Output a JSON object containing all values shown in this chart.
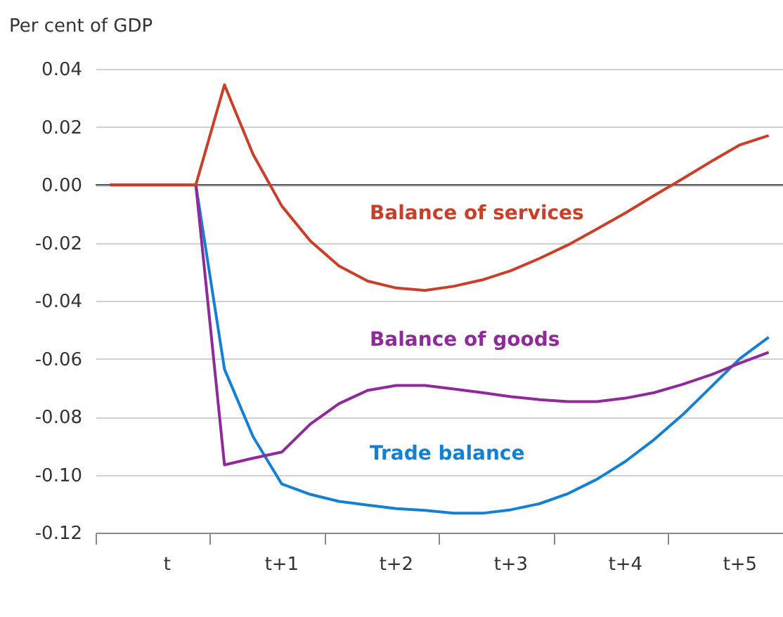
{
  "chart_data": {
    "type": "line",
    "ylabel": "Per cent of GDP",
    "categories": [
      null,
      null,
      "t",
      null,
      null,
      null,
      "t+1",
      null,
      null,
      null,
      "t+2",
      null,
      null,
      null,
      "t+3",
      null,
      null,
      null,
      "t+4",
      null,
      null,
      null,
      "t+5",
      null
    ],
    "series": [
      {
        "name": "Balance of services",
        "color": "#c8402a",
        "values": [
          0,
          0,
          0,
          0,
          0.0345,
          0.0105,
          -0.0073,
          -0.0194,
          -0.028,
          -0.0332,
          -0.0356,
          -0.0364,
          -0.035,
          -0.0328,
          -0.0296,
          -0.0254,
          -0.0207,
          -0.0153,
          -0.0097,
          -0.0037,
          0.0021,
          0.0081,
          0.0138,
          0.017
        ]
      },
      {
        "name": "Balance of goods",
        "color": "#8e2a9a",
        "values": [
          null,
          null,
          null,
          0,
          -0.0966,
          -0.0943,
          -0.0922,
          -0.0825,
          -0.0755,
          -0.0709,
          -0.0692,
          -0.0692,
          -0.0704,
          -0.0717,
          -0.0731,
          -0.0741,
          -0.0748,
          -0.0748,
          -0.0736,
          -0.0717,
          -0.0688,
          -0.0655,
          -0.0615,
          -0.0578
        ]
      },
      {
        "name": "Trade balance",
        "color": "#1580d0",
        "values": [
          null,
          null,
          null,
          0,
          -0.0636,
          -0.0869,
          -0.1032,
          -0.1068,
          -0.1092,
          -0.1105,
          -0.1117,
          -0.1123,
          -0.1133,
          -0.1133,
          -0.1121,
          -0.11,
          -0.1065,
          -0.1016,
          -0.0954,
          -0.0879,
          -0.0793,
          -0.0696,
          -0.0599,
          -0.0526
        ]
      }
    ],
    "ylim": [
      -0.12,
      0.04
    ],
    "yticks": [
      -0.12,
      {
        "value": -0.1,
        "label": "-0.10"
      },
      -0.08,
      -0.06,
      -0.04,
      -0.02,
      {
        "value": 0,
        "label": "0.00"
      },
      0.02,
      0.04
    ],
    "ref_lines": [
      {
        "axis": "y",
        "value": 0,
        "color": "#555555"
      }
    ],
    "grid": "y",
    "legend": false,
    "marker": "none",
    "line_style": "solid"
  }
}
